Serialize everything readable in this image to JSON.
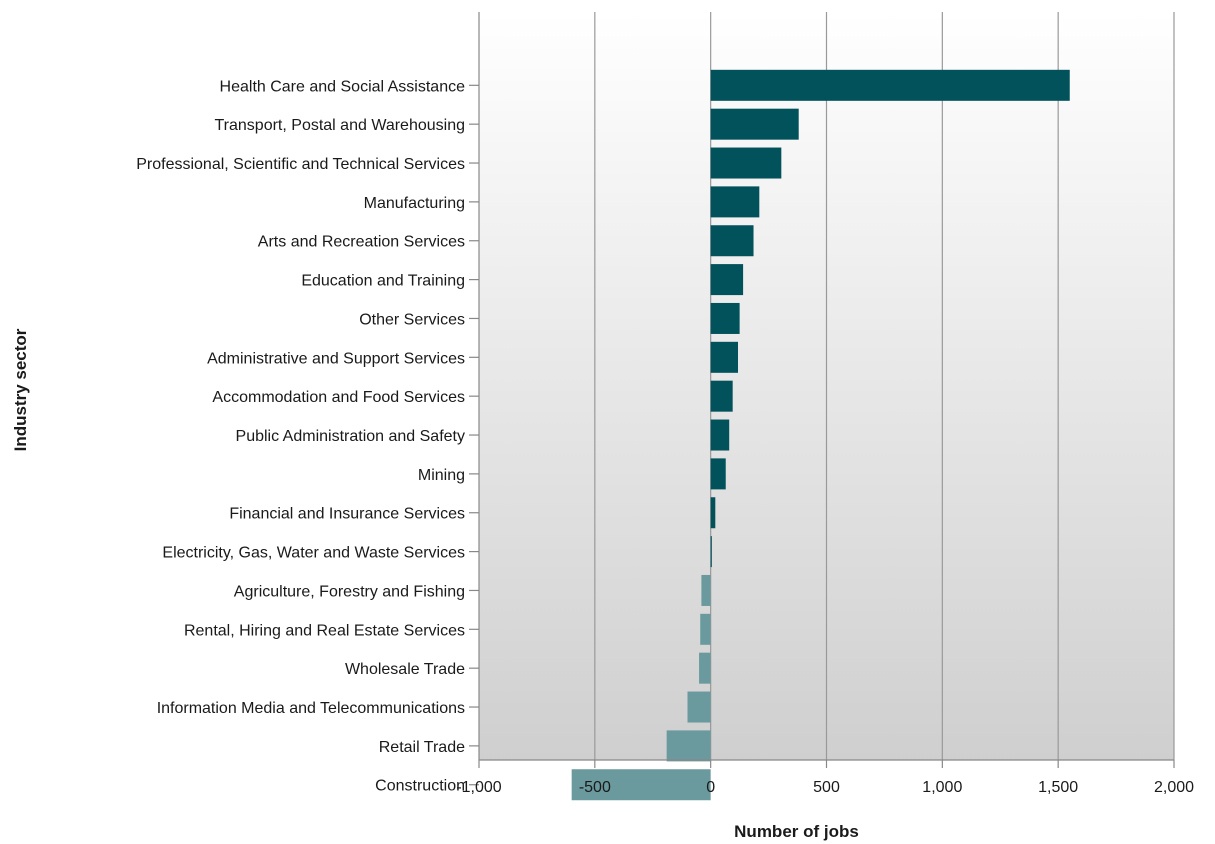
{
  "chart_data": {
    "type": "bar",
    "orientation": "horizontal",
    "xlabel": "Number of jobs",
    "ylabel": "Industry sector",
    "xlim": [
      -1000,
      2000
    ],
    "xticks": [
      -1000,
      -500,
      0,
      500,
      1000,
      1500,
      2000
    ],
    "xtick_labels": [
      "-1,000",
      "-500",
      "0",
      "500",
      "1,000",
      "1,500",
      "2,000"
    ],
    "grid": "vertical",
    "legend": "none",
    "colors": {
      "positive": "#02525b",
      "negative": "#6a9a9d",
      "grid": "#999999",
      "axis": "#888888",
      "background_top": "#ffffff",
      "background_bottom": "#cfcfcf"
    },
    "categories": [
      "Health Care and Social Assistance",
      "Transport, Postal and Warehousing",
      "Professional, Scientific and Technical Services",
      "Manufacturing",
      "Arts and Recreation Services",
      "Education and Training",
      "Other Services",
      "Administrative and Support Services",
      "Accommodation and Food Services",
      "Public Administration and Safety",
      "Mining",
      "Financial and Insurance Services",
      "Electricity, Gas, Water and Waste Services",
      "Agriculture, Forestry and Fishing",
      "Rental, Hiring and Real Estate Services",
      "Wholesale Trade",
      "Information Media and Telecommunications",
      "Retail Trade",
      "Construction"
    ],
    "values": [
      1550,
      380,
      305,
      210,
      185,
      140,
      125,
      118,
      95,
      80,
      65,
      20,
      5,
      -40,
      -45,
      -50,
      -100,
      -190,
      -600
    ]
  }
}
